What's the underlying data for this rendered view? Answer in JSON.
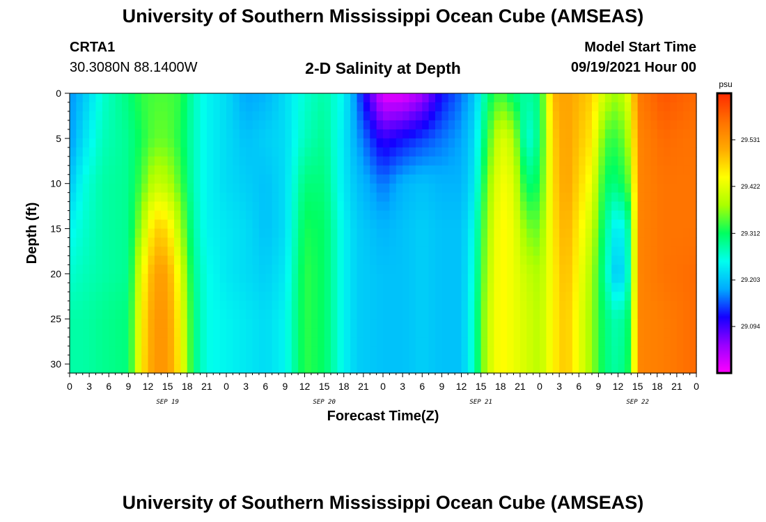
{
  "header": {
    "title": "University of Southern Mississippi Ocean Cube (AMSEAS)",
    "station": "CRTA1",
    "coords": "30.3080N  88.1400W",
    "subtitle": "2-D Salinity at Depth",
    "model_start_label": "Model Start Time",
    "model_start_value": "09/19/2021 Hour 00"
  },
  "footer": {
    "title": "University of Southern Mississippi Ocean Cube (AMSEAS)"
  },
  "chart_data": {
    "type": "heatmap",
    "title": "2-D Salinity at Depth",
    "xlabel": "Forecast Time(Z)",
    "ylabel": "Depth (ft)",
    "x_tick_labels": [
      "0",
      "3",
      "6",
      "9",
      "12",
      "15",
      "18",
      "21",
      "0",
      "3",
      "6",
      "9",
      "12",
      "15",
      "18",
      "21",
      "0",
      "3",
      "6",
      "9",
      "12",
      "15",
      "18",
      "21",
      "0",
      "3",
      "6",
      "9",
      "12",
      "15",
      "18",
      "21",
      "0"
    ],
    "date_labels": [
      "SEP 19",
      "SEP 20",
      "SEP 21",
      "SEP 22"
    ],
    "y_ticks": [
      0,
      5,
      10,
      15,
      20,
      25,
      30
    ],
    "y_range": [
      0,
      31
    ],
    "x_range_hours": [
      0,
      96
    ],
    "colorbar": {
      "unit": "psu",
      "ticks": [
        "29.531",
        "29.422",
        "29.312",
        "29.203",
        "29.094"
      ],
      "range": [
        28.985,
        29.64
      ],
      "colors": [
        "#ff00ff",
        "#9900ff",
        "#1400ff",
        "#00aaff",
        "#00ffee",
        "#00ff60",
        "#aaff00",
        "#ffff00",
        "#ffaa00",
        "#ff7000",
        "#ff2a00"
      ]
    },
    "profiles": [
      {
        "hour": 0,
        "values": [
          29.17,
          29.17,
          29.2,
          29.24,
          29.26,
          29.28,
          29.28
        ]
      },
      {
        "hour": 2,
        "values": [
          29.2,
          29.22,
          29.25,
          29.26,
          29.27,
          29.28,
          29.28
        ]
      },
      {
        "hour": 5,
        "values": [
          29.26,
          29.27,
          29.28,
          29.28,
          29.28,
          29.29,
          29.29
        ]
      },
      {
        "hour": 9,
        "values": [
          29.3,
          29.29,
          29.29,
          29.29,
          29.29,
          29.3,
          29.3
        ]
      },
      {
        "hour": 11,
        "values": [
          29.33,
          29.32,
          29.34,
          29.38,
          29.43,
          29.45,
          29.46
        ]
      },
      {
        "hour": 13,
        "values": [
          29.34,
          29.35,
          29.4,
          29.48,
          29.52,
          29.53,
          29.53
        ]
      },
      {
        "hour": 15,
        "values": [
          29.34,
          29.35,
          29.39,
          29.47,
          29.52,
          29.53,
          29.53
        ]
      },
      {
        "hour": 17,
        "values": [
          29.33,
          29.32,
          29.34,
          29.38,
          29.42,
          29.44,
          29.45
        ]
      },
      {
        "hour": 19,
        "values": [
          29.27,
          29.27,
          29.27,
          29.28,
          29.29,
          29.3,
          29.3
        ]
      },
      {
        "hour": 21,
        "values": [
          29.24,
          29.24,
          29.24,
          29.24,
          29.25,
          29.25,
          29.25
        ]
      },
      {
        "hour": 24,
        "values": [
          29.22,
          29.22,
          29.22,
          29.23,
          29.23,
          29.24,
          29.24
        ]
      },
      {
        "hour": 27,
        "values": [
          29.18,
          29.2,
          29.21,
          29.22,
          29.22,
          29.23,
          29.23
        ]
      },
      {
        "hour": 30,
        "values": [
          29.19,
          29.21,
          29.2,
          29.2,
          29.21,
          29.22,
          29.22
        ]
      },
      {
        "hour": 33,
        "values": [
          29.22,
          29.22,
          29.22,
          29.22,
          29.23,
          29.24,
          29.24
        ]
      },
      {
        "hour": 36,
        "values": [
          29.26,
          29.27,
          29.3,
          29.32,
          29.33,
          29.33,
          29.33
        ]
      },
      {
        "hour": 39,
        "values": [
          29.28,
          29.29,
          29.3,
          29.31,
          29.31,
          29.31,
          29.31
        ]
      },
      {
        "hour": 42,
        "values": [
          29.24,
          29.23,
          29.23,
          29.24,
          29.24,
          29.24,
          29.24
        ]
      },
      {
        "hour": 44,
        "values": [
          29.16,
          29.18,
          29.2,
          29.21,
          29.21,
          29.21,
          29.21
        ]
      },
      {
        "hour": 48,
        "values": [
          29.0,
          29.1,
          29.16,
          29.19,
          29.2,
          29.2,
          29.2
        ]
      },
      {
        "hour": 51,
        "values": [
          29.0,
          29.12,
          29.19,
          29.2,
          29.2,
          29.2,
          29.2
        ]
      },
      {
        "hour": 54,
        "values": [
          29.04,
          29.14,
          29.2,
          29.21,
          29.21,
          29.21,
          29.21
        ]
      },
      {
        "hour": 57,
        "values": [
          29.12,
          29.16,
          29.19,
          29.2,
          29.2,
          29.2,
          29.2
        ]
      },
      {
        "hour": 60,
        "values": [
          29.16,
          29.18,
          29.19,
          29.2,
          29.2,
          29.2,
          29.2
        ]
      },
      {
        "hour": 62,
        "values": [
          29.2,
          29.22,
          29.23,
          29.25,
          29.26,
          29.27,
          29.27
        ]
      },
      {
        "hour": 64,
        "values": [
          29.3,
          29.33,
          29.36,
          29.38,
          29.39,
          29.4,
          29.4
        ]
      },
      {
        "hour": 66,
        "values": [
          29.34,
          29.42,
          29.44,
          29.45,
          29.45,
          29.45,
          29.45
        ]
      },
      {
        "hour": 68,
        "values": [
          29.3,
          29.39,
          29.42,
          29.43,
          29.43,
          29.43,
          29.43
        ]
      },
      {
        "hour": 70,
        "values": [
          29.28,
          29.25,
          29.3,
          29.36,
          29.4,
          29.41,
          29.41
        ]
      },
      {
        "hour": 72,
        "values": [
          29.3,
          29.3,
          29.32,
          29.35,
          29.38,
          29.39,
          29.39
        ]
      },
      {
        "hour": 74,
        "values": [
          29.5,
          29.48,
          29.47,
          29.46,
          29.45,
          29.45,
          29.45
        ]
      },
      {
        "hour": 76,
        "values": [
          29.52,
          29.52,
          29.52,
          29.51,
          29.5,
          29.49,
          29.49
        ]
      },
      {
        "hour": 80,
        "values": [
          29.48,
          29.46,
          29.43,
          29.4,
          29.38,
          29.37,
          29.37
        ]
      },
      {
        "hour": 82,
        "values": [
          29.4,
          29.34,
          29.31,
          29.29,
          29.28,
          29.3,
          29.3
        ]
      },
      {
        "hour": 84,
        "values": [
          29.37,
          29.33,
          29.3,
          29.22,
          29.19,
          29.27,
          29.28
        ]
      },
      {
        "hour": 86,
        "values": [
          29.44,
          29.4,
          29.36,
          29.3,
          29.29,
          29.32,
          29.33
        ]
      },
      {
        "hour": 87,
        "values": [
          29.56,
          29.55,
          29.55,
          29.55,
          29.55,
          29.55,
          29.55
        ]
      },
      {
        "hour": 91,
        "values": [
          29.6,
          29.58,
          29.57,
          29.57,
          29.57,
          29.56,
          29.56
        ]
      },
      {
        "hour": 96,
        "values": [
          29.58,
          29.57,
          29.57,
          29.57,
          29.58,
          29.58,
          29.58
        ]
      }
    ]
  }
}
